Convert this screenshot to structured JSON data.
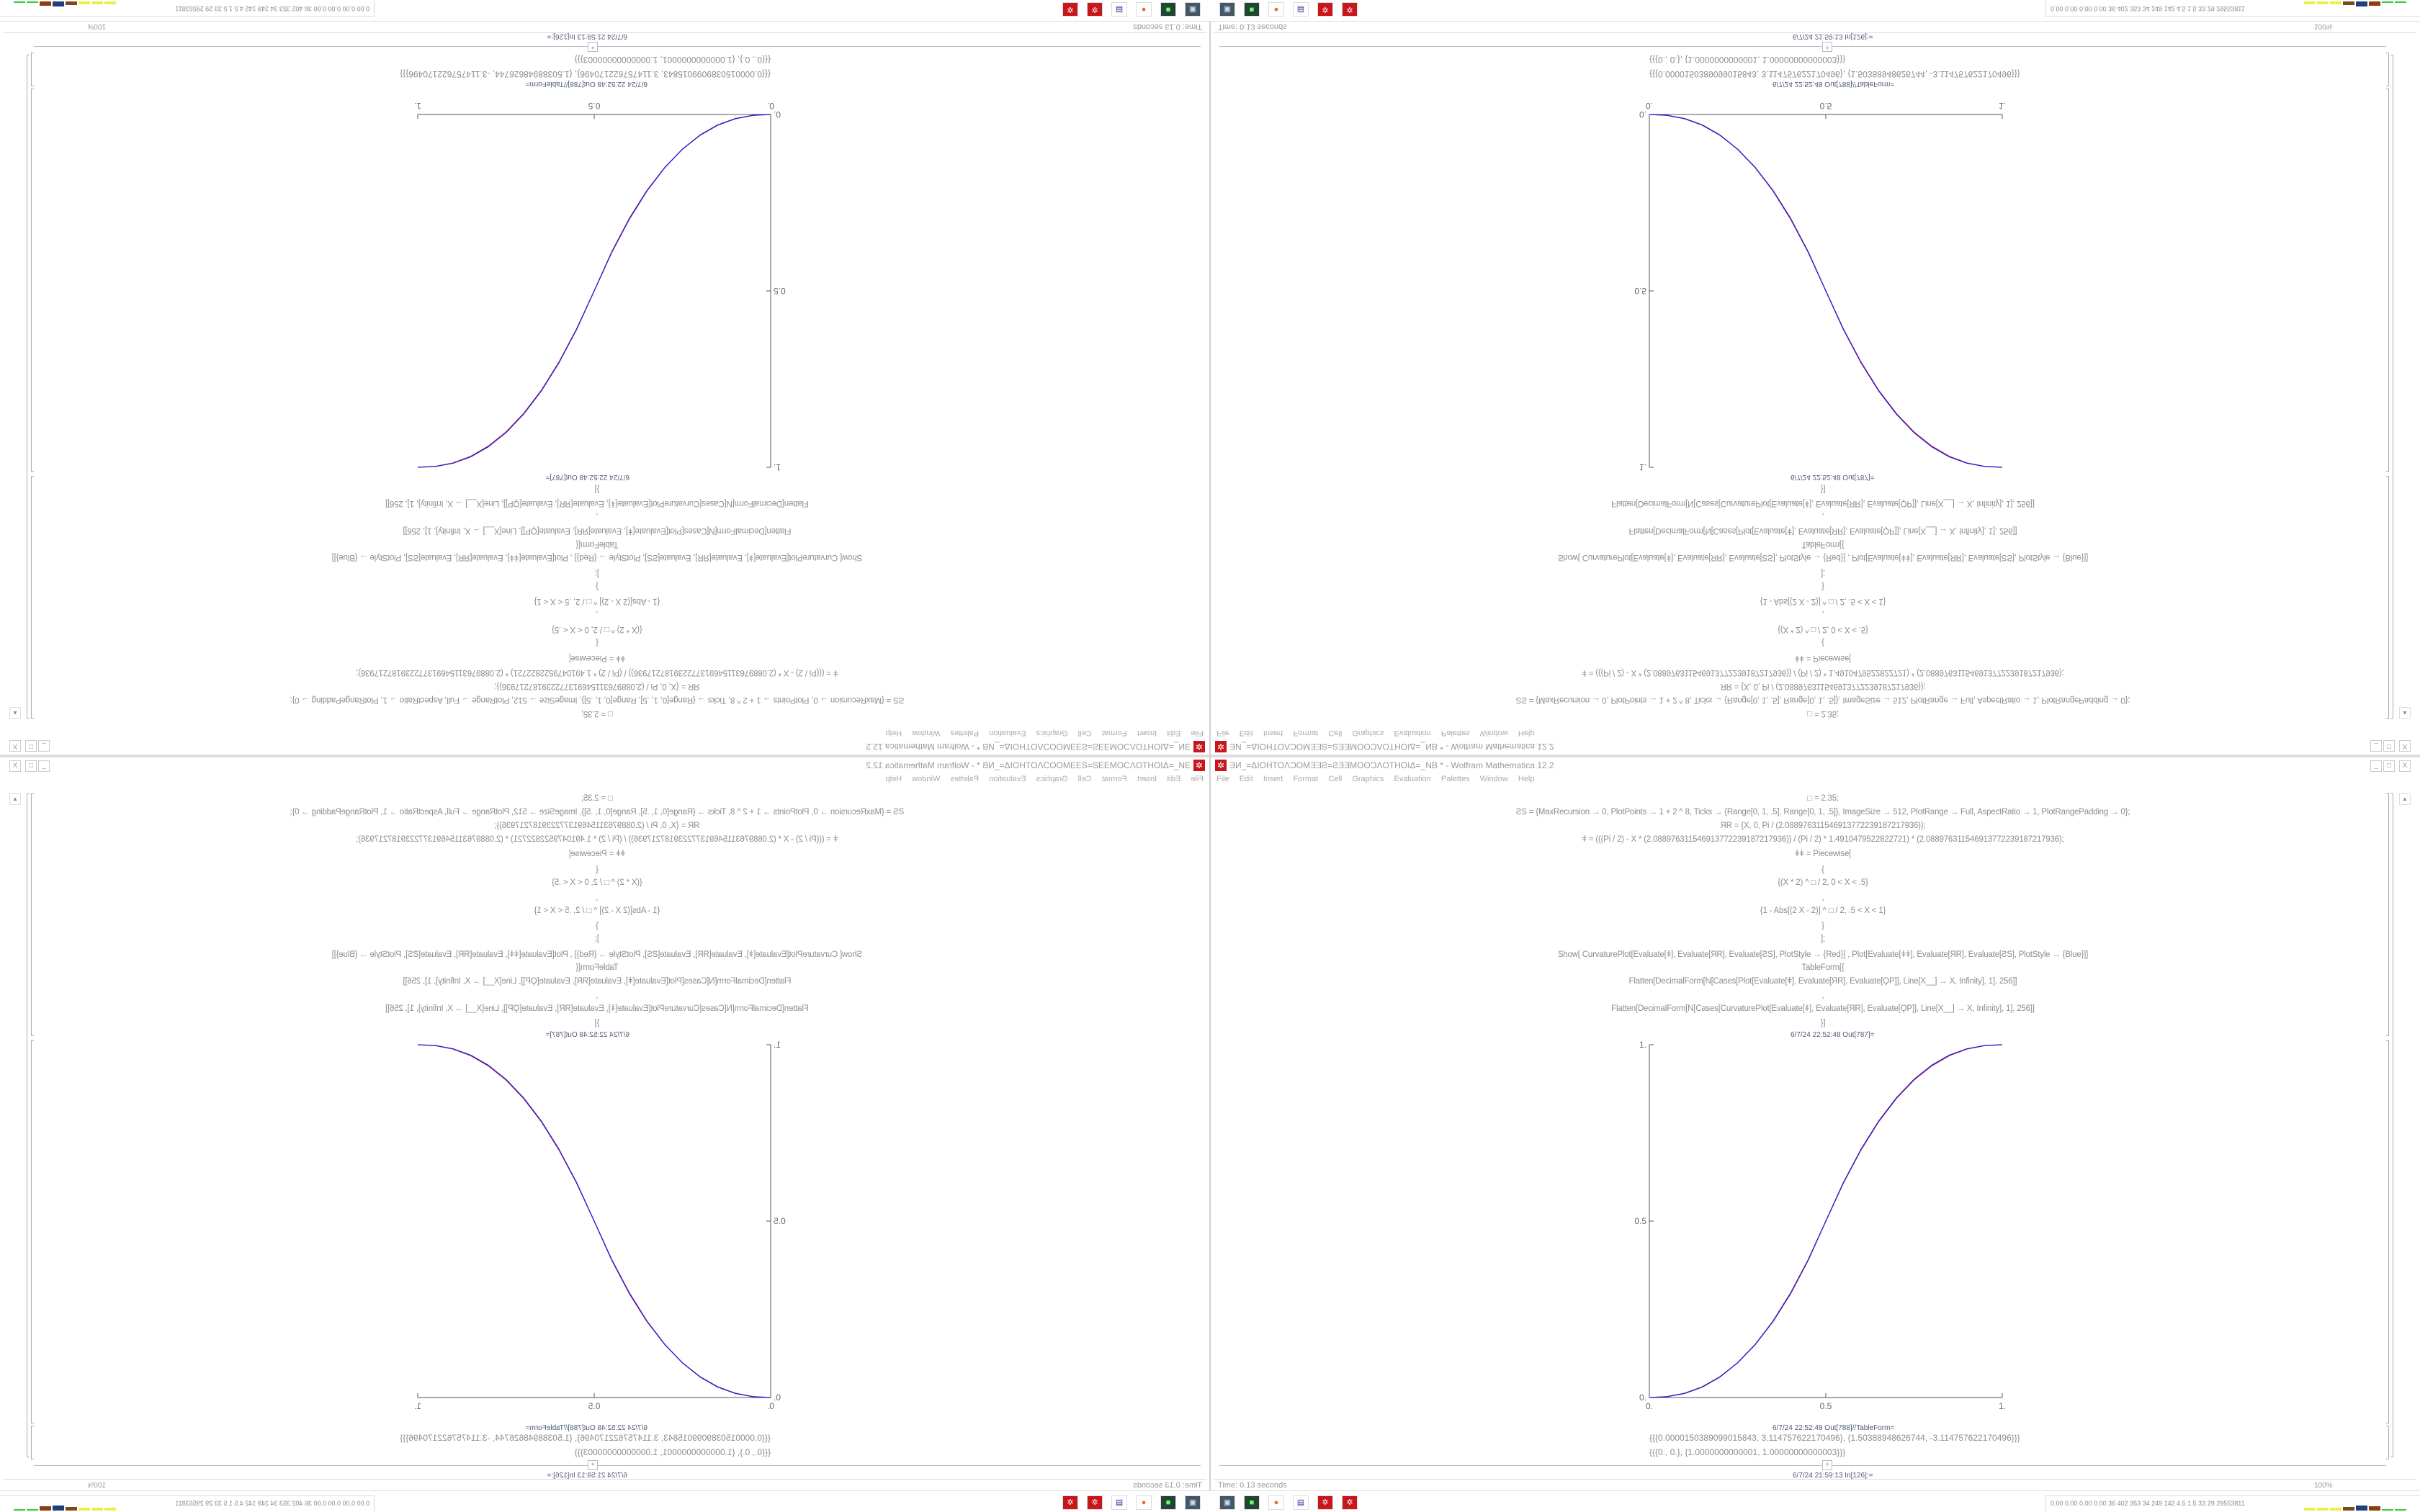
{
  "window": {
    "title": "ƎИ_=ΔIOHTOΛƆOMƎƎƧ=ƧƎƎMOOƆΛOTHOIΔ=_NB * - Wolfram Mathematica 12.2",
    "buttons": {
      "minimize": "_",
      "maximize": "□",
      "close": "X"
    }
  },
  "menu": [
    "File",
    "Edit",
    "Insert",
    "Format",
    "Cell",
    "Graphics",
    "Evaluation",
    "Palettes",
    "Window",
    "Help"
  ],
  "input_code": [
    "□ = 2.35;",
    "ƧS = {MaxRecursion → 0, PlotPoints → 1 + 2 ^ 8, Ticks → {Range[0, 1, .5], Range[0, 1, .5]}, ImageSize → 512, PlotRange → Full, AspectRatio → 1, PlotRangePadding → 0};",
    "ЯR = {X, 0, Pi / (2.088976311546913772239187217936)};",
    "ǂ = (((Pi / 2) - X * (2.088976311546913772239187217936)) / (Pi / 2) * 1.4910479522822721) * (2.088976311546913772239187217936);",
    "ǂǂ = Piecewise[",
    "{",
    "{(X * 2) ^ □ / 2, 0 < X < .5}",
    ",",
    "{1 - Abs[(2 X - 2)] ^ □ / 2, .5 < X < 1}",
    "}",
    "];",
    "Show[   CurvaturePlot[Evaluate[ǂ], Evaluate[ЯR], Evaluate[ƧS], PlotStyle → {Red}]   ,   Plot[Evaluate[ǂǂ], Evaluate[ЯR], Evaluate[ƧS],  PlotStyle → {Blue}]]",
    "TableForm[{",
    "Flatten[DecimalForm[N[Cases[Plot[Evaluate[ǂ], Evaluate[ЯR], Evaluate[ϘP]], Line[X__] → X, Infinity], 1], 256]]",
    ",",
    "Flatten[DecimalForm[N[Cases[CurvaturePlot[Evaluate[ǂ], Evaluate[ЯR], Evaluate[ϘP]], Line[X__] → X, Infinity], 1], 256]]",
    "}]"
  ],
  "out_plot_label": "6/7/24 22:52:48 Out[787]=",
  "out_table_label": "6/7/24 22:52:48 Out[788]//TableForm=",
  "out_table_rows": [
    "{{{0.0000150389099015843, 3.114757622170496}, {1.50388948626744, -3.114757622170496}}}",
    "{{{0., 0.}, {1.0000000000001, 1.00000000000003}}}"
  ],
  "next_input_label": "6/7/24 21:59:13 In[126]:=",
  "status": {
    "time": "Time: 0.13 seconds",
    "zoom": "100%"
  },
  "taskbar": {
    "icons": [
      "monitor-icon",
      "terminal-icon",
      "firefox-icon",
      "floppy-64-icon",
      "mathematica-icon",
      "mathematica-icon"
    ],
    "meters_text": "0.00 0.00 0.00 0.00  36  402  353  34  249  142  4.5  1.5  33  29  29553811"
  },
  "chart_data": {
    "type": "line",
    "xlim": [
      0,
      1
    ],
    "ylim": [
      0,
      1
    ],
    "x_ticks": [
      "0.",
      "0.5",
      "1."
    ],
    "y_ticks": [
      "0.",
      "0.5",
      "1."
    ],
    "grid": false,
    "x": [
      0,
      0.05,
      0.1,
      0.15,
      0.2,
      0.25,
      0.3,
      0.35,
      0.4,
      0.45,
      0.5,
      0.55,
      0.6,
      0.65,
      0.7,
      0.75,
      0.8,
      0.85,
      0.9,
      0.95,
      1
    ],
    "series": [
      {
        "color": "#e02020",
        "values": [
          0,
          0.0025,
          0.0122,
          0.0305,
          0.059,
          0.0985,
          0.15,
          0.2145,
          0.2935,
          0.3885,
          0.5,
          0.608,
          0.702,
          0.782,
          0.8475,
          0.9,
          0.94,
          0.969,
          0.9878,
          0.9975,
          1
        ]
      },
      {
        "color": "#2020e0",
        "values": [
          0,
          0.0022,
          0.0114,
          0.0295,
          0.0581,
          0.0981,
          0.1506,
          0.2162,
          0.296,
          0.3904,
          0.5,
          0.6096,
          0.704,
          0.7838,
          0.8494,
          0.9019,
          0.9419,
          0.9705,
          0.9886,
          0.9978,
          1
        ]
      }
    ]
  }
}
